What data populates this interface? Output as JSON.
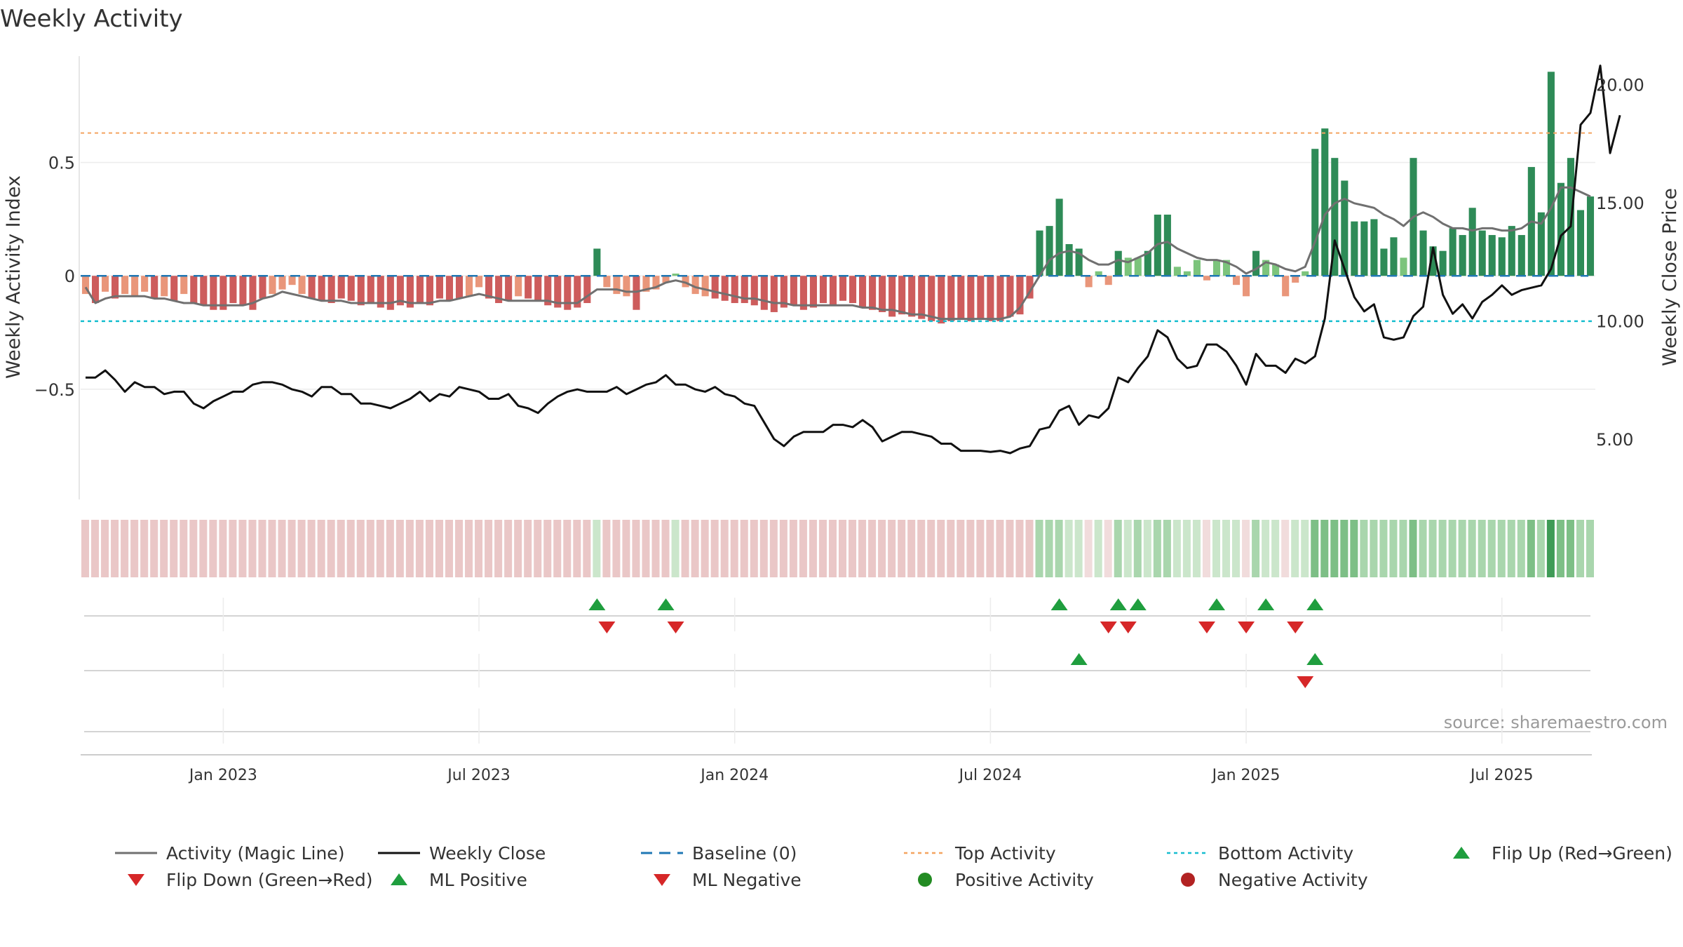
{
  "chart_data": {
    "type": "bar",
    "title": "Weekly Activity",
    "source": "source: sharemaestro.com",
    "ylabel": "Weekly Activity Index",
    "y2label": "Weekly Close Price",
    "ylim": [
      -0.98,
      1.0
    ],
    "y2lim": [
      2.5,
      21.5
    ],
    "yticks": [
      {
        "v": 0.5,
        "label": "0.5"
      },
      {
        "v": 0,
        "label": "0"
      },
      {
        "v": -0.5,
        "label": "−0.5"
      }
    ],
    "y2ticks": [
      {
        "v": 20,
        "label": "20.00"
      },
      {
        "v": 15,
        "label": "15.00"
      },
      {
        "v": 10,
        "label": "10.00"
      },
      {
        "v": 5,
        "label": "5.00"
      }
    ],
    "xticks": [
      {
        "week": 14,
        "label": "Jan 2023"
      },
      {
        "week": 40,
        "label": "Jul 2023"
      },
      {
        "week": 66,
        "label": "Jan 2024"
      },
      {
        "week": 92,
        "label": "Jul 2024"
      },
      {
        "week": 118,
        "label": "Jan 2025"
      },
      {
        "week": 144,
        "label": "Jul 2025"
      }
    ],
    "top_activity": 0.63,
    "bottom_activity": -0.2,
    "baseline": 0,
    "colors": {
      "strong_red": "#cd5c5c",
      "light_red": "#e9967a",
      "strong_green": "#2e8b57",
      "light_green": "#7cc47c",
      "magic_line": "#707070",
      "close_line": "#111111",
      "baseline": "#1f77b4",
      "top_line": "#f4a460",
      "bottom_line": "#17becf",
      "flip_up": "#1f9e3e",
      "flip_down": "#d62728",
      "pos_dot": "#228b22",
      "neg_dot": "#b22222"
    },
    "activity": [
      -0.08,
      -0.12,
      -0.07,
      -0.1,
      -0.08,
      -0.09,
      -0.07,
      -0.1,
      -0.09,
      -0.11,
      -0.08,
      -0.12,
      -0.13,
      -0.15,
      -0.15,
      -0.12,
      -0.13,
      -0.15,
      -0.1,
      -0.08,
      -0.06,
      -0.04,
      -0.08,
      -0.1,
      -0.11,
      -0.12,
      -0.1,
      -0.11,
      -0.13,
      -0.12,
      -0.14,
      -0.15,
      -0.13,
      -0.14,
      -0.12,
      -0.13,
      -0.1,
      -0.11,
      -0.1,
      -0.09,
      -0.05,
      -0.1,
      -0.12,
      -0.11,
      -0.09,
      -0.1,
      -0.11,
      -0.13,
      -0.14,
      -0.15,
      -0.14,
      -0.12,
      0.12,
      -0.05,
      -0.08,
      -0.09,
      -0.15,
      -0.07,
      -0.06,
      -0.03,
      0.01,
      -0.05,
      -0.08,
      -0.09,
      -0.1,
      -0.11,
      -0.12,
      -0.12,
      -0.13,
      -0.15,
      -0.16,
      -0.14,
      -0.13,
      -0.15,
      -0.14,
      -0.12,
      -0.13,
      -0.11,
      -0.12,
      -0.14,
      -0.15,
      -0.16,
      -0.18,
      -0.17,
      -0.18,
      -0.19,
      -0.2,
      -0.21,
      -0.2,
      -0.19,
      -0.2,
      -0.19,
      -0.2,
      -0.2,
      -0.18,
      -0.17,
      -0.1,
      0.2,
      0.22,
      0.34,
      0.14,
      0.12,
      -0.05,
      0.02,
      -0.04,
      0.11,
      0.08,
      0.08,
      0.11,
      0.27,
      0.27,
      0.04,
      0.02,
      0.07,
      -0.02,
      0.07,
      0.07,
      -0.04,
      -0.09,
      0.11,
      0.07,
      0.05,
      -0.09,
      -0.03,
      0.02,
      0.56,
      0.65,
      0.52,
      0.42,
      0.24,
      0.24,
      0.25,
      0.12,
      0.17,
      0.08,
      0.52,
      0.2,
      0.13,
      0.11,
      0.21,
      0.18,
      0.3,
      0.2,
      0.18,
      0.17,
      0.22,
      0.18,
      0.48,
      0.28,
      0.9,
      0.41,
      0.52,
      0.29,
      0.35
    ],
    "magic": [
      -0.05,
      -0.12,
      -0.1,
      -0.09,
      -0.09,
      -0.09,
      -0.09,
      -0.1,
      -0.1,
      -0.11,
      -0.12,
      -0.12,
      -0.13,
      -0.13,
      -0.13,
      -0.13,
      -0.13,
      -0.12,
      -0.1,
      -0.09,
      -0.07,
      -0.08,
      -0.09,
      -0.1,
      -0.11,
      -0.11,
      -0.11,
      -0.12,
      -0.12,
      -0.12,
      -0.12,
      -0.12,
      -0.11,
      -0.12,
      -0.12,
      -0.12,
      -0.11,
      -0.11,
      -0.1,
      -0.09,
      -0.08,
      -0.09,
      -0.1,
      -0.11,
      -0.11,
      -0.11,
      -0.11,
      -0.11,
      -0.12,
      -0.12,
      -0.12,
      -0.09,
      -0.06,
      -0.06,
      -0.06,
      -0.07,
      -0.07,
      -0.06,
      -0.05,
      -0.03,
      -0.02,
      -0.03,
      -0.05,
      -0.06,
      -0.07,
      -0.08,
      -0.09,
      -0.1,
      -0.1,
      -0.11,
      -0.12,
      -0.12,
      -0.13,
      -0.13,
      -0.13,
      -0.13,
      -0.13,
      -0.13,
      -0.13,
      -0.14,
      -0.14,
      -0.15,
      -0.15,
      -0.16,
      -0.17,
      -0.17,
      -0.18,
      -0.19,
      -0.19,
      -0.19,
      -0.19,
      -0.19,
      -0.19,
      -0.19,
      -0.18,
      -0.14,
      -0.07,
      0.0,
      0.07,
      0.1,
      0.11,
      0.1,
      0.07,
      0.05,
      0.05,
      0.07,
      0.06,
      0.08,
      0.1,
      0.14,
      0.15,
      0.12,
      0.1,
      0.08,
      0.07,
      0.07,
      0.06,
      0.04,
      0.01,
      0.03,
      0.06,
      0.05,
      0.03,
      0.02,
      0.04,
      0.15,
      0.27,
      0.32,
      0.34,
      0.32,
      0.31,
      0.3,
      0.27,
      0.25,
      0.22,
      0.26,
      0.28,
      0.26,
      0.23,
      0.21,
      0.21,
      0.2,
      0.21,
      0.21,
      0.2,
      0.2,
      0.21,
      0.24,
      0.23,
      0.3,
      0.39,
      0.39,
      0.37,
      0.35
    ],
    "close": [
      7.6,
      7.6,
      7.9,
      7.5,
      7.0,
      7.4,
      7.2,
      7.2,
      6.9,
      7.0,
      7.0,
      6.5,
      6.3,
      6.6,
      6.8,
      7.0,
      7.0,
      7.3,
      7.4,
      7.4,
      7.3,
      7.1,
      7.0,
      6.8,
      7.2,
      7.2,
      6.9,
      6.9,
      6.5,
      6.5,
      6.4,
      6.3,
      6.5,
      6.7,
      7.0,
      6.6,
      6.9,
      6.8,
      7.2,
      7.1,
      7.0,
      6.7,
      6.7,
      6.9,
      6.4,
      6.3,
      6.1,
      6.5,
      6.8,
      7.0,
      7.1,
      7.0,
      7.0,
      7.0,
      7.2,
      6.9,
      7.1,
      7.3,
      7.4,
      7.7,
      7.3,
      7.3,
      7.1,
      7.0,
      7.2,
      6.9,
      6.8,
      6.5,
      6.4,
      5.7,
      5.0,
      4.7,
      5.1,
      5.3,
      5.3,
      5.3,
      5.6,
      5.6,
      5.5,
      5.8,
      5.5,
      4.9,
      5.1,
      5.3,
      5.3,
      5.2,
      5.1,
      4.8,
      4.8,
      4.5,
      4.5,
      4.5,
      4.45,
      4.5,
      4.4,
      4.6,
      4.7,
      5.4,
      5.5,
      6.2,
      6.4,
      5.6,
      6.0,
      5.9,
      6.3,
      7.6,
      7.4,
      8.0,
      8.5,
      9.6,
      9.3,
      8.4,
      8.0,
      8.1,
      9.0,
      9.0,
      8.7,
      8.1,
      7.3,
      8.6,
      8.1,
      8.1,
      7.8,
      8.4,
      8.2,
      8.5,
      10.1,
      13.4,
      12.2,
      11.0,
      10.4,
      10.7,
      9.3,
      9.2,
      9.3,
      10.2,
      10.6,
      13.1,
      11.1,
      10.3,
      10.7,
      10.1,
      10.8,
      11.1,
      11.5,
      11.1,
      11.3,
      11.4,
      11.5,
      12.2,
      13.6,
      14.0,
      18.3,
      18.8,
      20.8,
      17.1,
      18.7
    ],
    "heat": [
      -2,
      -2,
      -2,
      -2,
      -2,
      -2,
      -2,
      -2,
      -2,
      -2,
      -2,
      -2,
      -2,
      -2,
      -2,
      -2,
      -2,
      -2,
      -2,
      -2,
      -2,
      -2,
      -2,
      -2,
      -2,
      -2,
      -2,
      -2,
      -2,
      -2,
      -2,
      -2,
      -2,
      -2,
      -2,
      -2,
      -2,
      -2,
      -2,
      -2,
      -2,
      -2,
      -2,
      -2,
      -2,
      -2,
      -2,
      -2,
      -2,
      -2,
      -2,
      -2,
      1,
      -2,
      -2,
      -2,
      -2,
      -2,
      -2,
      -2,
      1,
      -2,
      -2,
      -2,
      -2,
      -2,
      -2,
      -2,
      -2,
      -2,
      -2,
      -2,
      -2,
      -2,
      -2,
      -2,
      -2,
      -2,
      -2,
      -2,
      -2,
      -2,
      -2,
      -2,
      -2,
      -2,
      -2,
      -2,
      -2,
      -2,
      -2,
      -2,
      -2,
      -2,
      -2,
      -2,
      -2,
      2,
      2,
      2,
      1,
      1,
      -1,
      1,
      -1,
      2,
      1,
      2,
      1,
      2,
      2,
      1,
      1,
      1,
      -1,
      1,
      1,
      1,
      -1,
      2,
      1,
      1,
      -1,
      1,
      1,
      3,
      3,
      3,
      3,
      3,
      2,
      2,
      2,
      2,
      2,
      3,
      2,
      2,
      2,
      2,
      2,
      2,
      2,
      2,
      2,
      2,
      2,
      3,
      2,
      4,
      3,
      3,
      2,
      2
    ],
    "flip_up": [
      52,
      59,
      99,
      105,
      107,
      115,
      120,
      125
    ],
    "flip_down": [
      53,
      60,
      104,
      106,
      114,
      118,
      123
    ],
    "ml_positive": [
      101,
      125
    ],
    "ml_negative": [
      124
    ],
    "legend": [
      {
        "key": "magic",
        "label": "Activity (Magic Line)"
      },
      {
        "key": "close",
        "label": "Weekly Close"
      },
      {
        "key": "baseline",
        "label": "Baseline (0)"
      },
      {
        "key": "top",
        "label": "Top Activity"
      },
      {
        "key": "bottom",
        "label": "Bottom Activity"
      },
      {
        "key": "flipup",
        "label": "Flip Up (Red→Green)"
      },
      {
        "key": "flipdown",
        "label": "Flip Down (Green→Red)"
      },
      {
        "key": "mlpos",
        "label": "ML Positive"
      },
      {
        "key": "mlneg",
        "label": "ML Negative"
      },
      {
        "key": "posdot",
        "label": "Positive Activity"
      },
      {
        "key": "negdot",
        "label": "Negative Activity"
      }
    ]
  }
}
